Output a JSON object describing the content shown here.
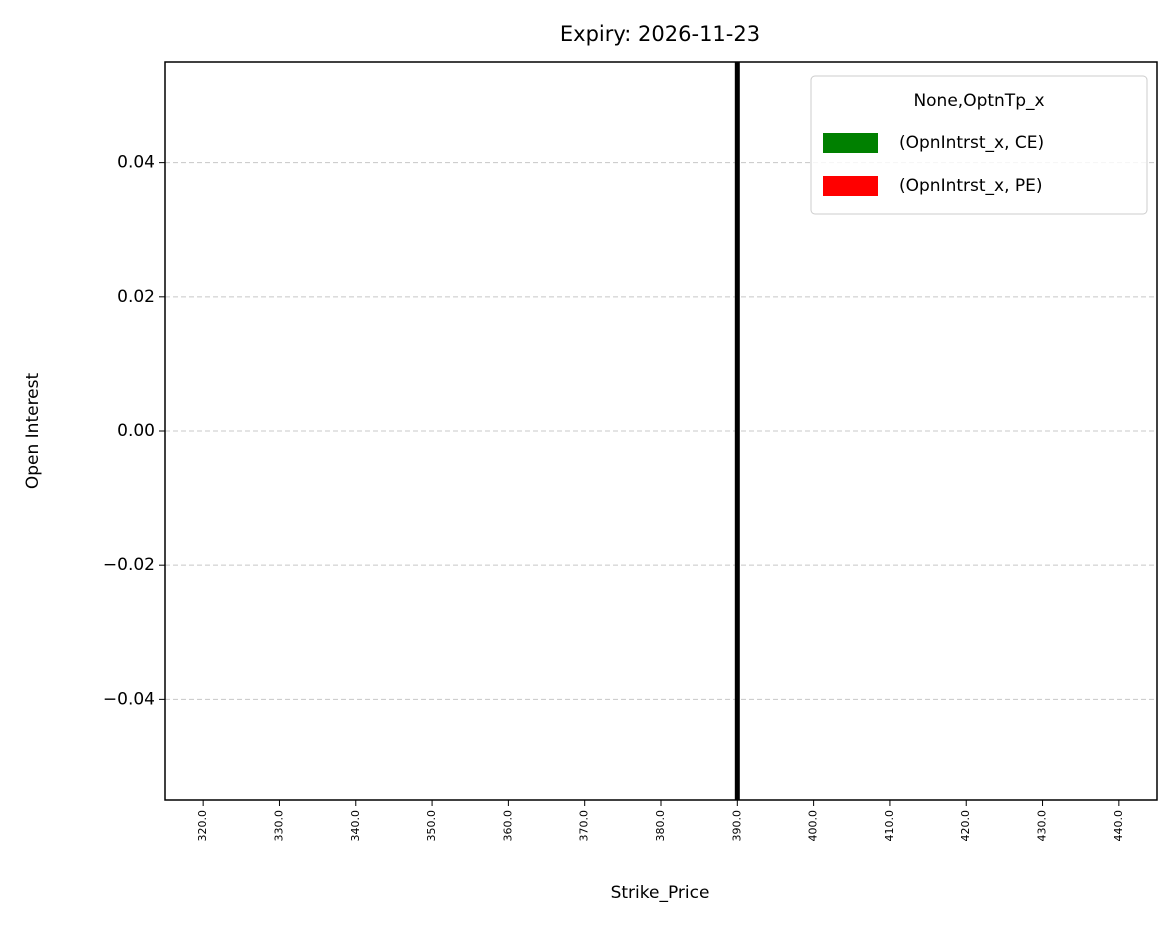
{
  "chart_data": {
    "type": "bar",
    "title": "Expiry: 2026-11-23",
    "x_label": "Strike_Price",
    "y_label": "Open Interest",
    "categories": [
      "320.0",
      "330.0",
      "340.0",
      "350.0",
      "360.0",
      "370.0",
      "380.0",
      "390.0",
      "400.0",
      "410.0",
      "420.0",
      "430.0",
      "440.0"
    ],
    "series": [
      {
        "name": "(OpnIntrst_x, CE)",
        "color": "#008000",
        "values": [
          0,
          0,
          0,
          0,
          0,
          0,
          0,
          0,
          0,
          0,
          0,
          0,
          0
        ]
      },
      {
        "name": "(OpnIntrst_x, PE)",
        "color": "#ff0000",
        "values": [
          0,
          0,
          0,
          0,
          0,
          0,
          0,
          0,
          0,
          0,
          0,
          0,
          0
        ]
      }
    ],
    "legend_title": "None,OptnTp_x",
    "legend": "upper right",
    "ylim": [
      -0.055,
      0.055
    ],
    "yticks": [
      {
        "value": -0.04,
        "label": "−0.04"
      },
      {
        "value": -0.02,
        "label": "−0.02"
      },
      {
        "value": 0,
        "label": "0.00"
      },
      0.02,
      0.04
    ],
    "grid": true,
    "grid_style": "dashed",
    "vline": {
      "x": "390.0",
      "color": "#000000"
    }
  }
}
